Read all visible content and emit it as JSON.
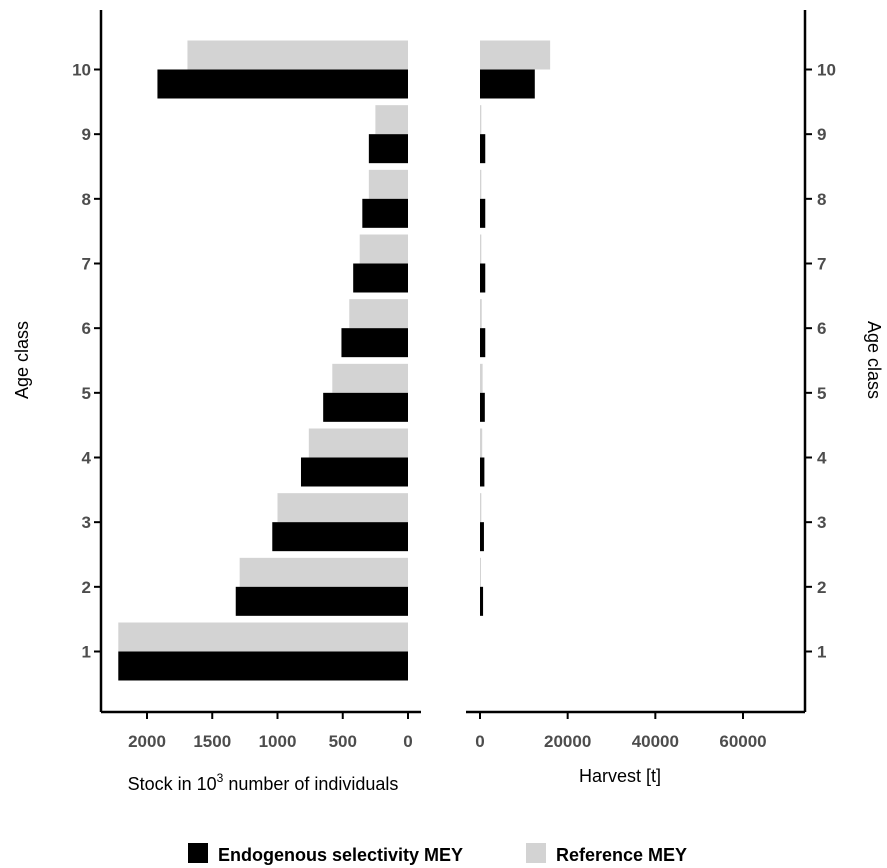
{
  "chart_data": [
    {
      "type": "bar",
      "orientation": "horizontal",
      "x_axis_reversed": true,
      "categories": [
        "1",
        "2",
        "3",
        "4",
        "5",
        "6",
        "7",
        "8",
        "9",
        "10"
      ],
      "series": [
        {
          "name": "Endogenous selectivity MEY",
          "color": "#000000",
          "values": [
            2220,
            1320,
            1040,
            820,
            650,
            510,
            420,
            350,
            300,
            1920
          ]
        },
        {
          "name": "Reference MEY",
          "color": "#d3d3d3",
          "values": [
            2220,
            1290,
            1000,
            760,
            580,
            450,
            370,
            300,
            250,
            1690
          ]
        }
      ],
      "xlabel_parts": {
        "before": "Stock in 10",
        "sup": "3",
        "after": " number of individuals"
      },
      "ylabel": "Age class",
      "xticks": [
        2000,
        1500,
        1000,
        500,
        0
      ],
      "xlim": [
        0,
        2390
      ]
    },
    {
      "type": "bar",
      "orientation": "horizontal",
      "categories": [
        "1",
        "2",
        "3",
        "4",
        "5",
        "6",
        "7",
        "8",
        "9",
        "10"
      ],
      "series": [
        {
          "name": "Endogenous selectivity MEY",
          "color": "#000000",
          "values": [
            0,
            700,
            900,
            1000,
            1100,
            1200,
            1200,
            1200,
            1200,
            12500
          ]
        },
        {
          "name": "Reference MEY",
          "color": "#d3d3d3",
          "values": [
            0,
            150,
            300,
            500,
            600,
            400,
            300,
            300,
            300,
            16000
          ]
        }
      ],
      "xlabel": "Harvest [t]",
      "ylabel": "Age class",
      "xticks": [
        "0",
        "20000",
        "40000",
        "60000"
      ],
      "xlim": [
        -3500,
        72000
      ]
    }
  ],
  "legend": {
    "position": "bottom",
    "items": [
      {
        "label": "Endogenous selectivity MEY",
        "color": "#000000"
      },
      {
        "label": "Reference MEY",
        "color": "#d3d3d3"
      }
    ]
  }
}
